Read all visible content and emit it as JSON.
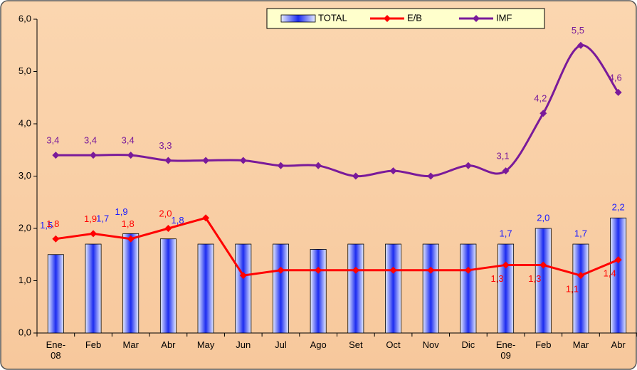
{
  "chart_data": {
    "type": "bar_line",
    "categories": [
      "Ene-08",
      "Feb",
      "Mar",
      "Abr",
      "May",
      "Jun",
      "Jul",
      "Ago",
      "Set",
      "Oct",
      "Nov",
      "Dic",
      "Ene-09",
      "Feb",
      "Mar",
      "Abr"
    ],
    "series": [
      {
        "name": "TOTAL",
        "type": "bar",
        "color": "#1c2cf0",
        "values": [
          1.5,
          1.7,
          1.9,
          1.8,
          1.7,
          1.7,
          1.7,
          1.6,
          1.7,
          1.7,
          1.7,
          1.7,
          1.7,
          2.0,
          1.7,
          2.2
        ],
        "value_labels": [
          "1,5",
          "1,7",
          "1,9",
          "1,8",
          null,
          null,
          null,
          null,
          null,
          null,
          null,
          null,
          "1,7",
          "2,0",
          "1,7",
          "2,2"
        ]
      },
      {
        "name": "E/B",
        "type": "line",
        "color": "#ff0000",
        "values": [
          1.8,
          1.9,
          1.8,
          2.0,
          2.2,
          1.1,
          1.2,
          1.2,
          1.2,
          1.2,
          1.2,
          1.2,
          1.3,
          1.3,
          1.1,
          1.4
        ],
        "value_labels": [
          "1,8",
          "1,9",
          "1,8",
          "2,0",
          null,
          null,
          null,
          null,
          null,
          null,
          null,
          null,
          "1,3",
          "1,3",
          "1,1",
          "1,4"
        ]
      },
      {
        "name": "IMF",
        "type": "line",
        "color": "#7a1a9a",
        "smooth": true,
        "values": [
          3.4,
          3.4,
          3.4,
          3.3,
          3.3,
          3.3,
          3.2,
          3.2,
          3.0,
          3.1,
          3.0,
          3.2,
          3.1,
          4.2,
          5.5,
          4.6
        ],
        "value_labels": [
          "3,4",
          "3,4",
          "3,4",
          "3,3",
          null,
          null,
          null,
          null,
          null,
          null,
          null,
          null,
          "3,1",
          "4,2",
          "5,5",
          "4,6"
        ]
      }
    ],
    "ylim": [
      0,
      6
    ],
    "yticks": [
      {
        "value": 0,
        "label": "0,0"
      },
      {
        "value": 1,
        "label": "1,0"
      },
      {
        "value": 2,
        "label": "2,0"
      },
      {
        "value": 3,
        "label": "3,0"
      },
      {
        "value": 4,
        "label": "4,0"
      },
      {
        "value": 5,
        "label": "5,0"
      },
      {
        "value": 6,
        "label": "6,0"
      }
    ],
    "legend": "top"
  }
}
